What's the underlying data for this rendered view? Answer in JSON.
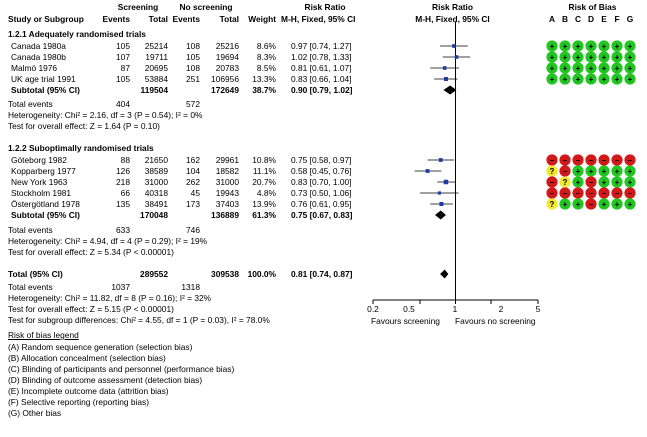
{
  "header": {
    "screening": "Screening",
    "no_screening": "No screening",
    "risk_ratio_top": "Risk Ratio",
    "risk_ratio_plot_top": "Risk Ratio",
    "risk_of_bias": "Risk of Bias",
    "study_or_subgroup": "Study or Subgroup",
    "events_a": "Events",
    "total_a": "Total",
    "events_b": "Events",
    "total_b": "Total",
    "weight": "Weight",
    "method": "M-H, Fixed, 95% CI",
    "method_plot": "M-H, Fixed, 95% CI",
    "bias_letters": [
      "A",
      "B",
      "C",
      "D",
      "E",
      "F",
      "G"
    ]
  },
  "subgroup1": {
    "title": "1.2.1 Adequately randomised trials",
    "studies": [
      {
        "name": "Canada 1980a",
        "e1": "105",
        "t1": "25214",
        "e2": "108",
        "t2": "25216",
        "weight": "8.6%",
        "ci": "0.97 [0.74, 1.27]",
        "rr": 0.97,
        "lo": 0.74,
        "hi": 1.27,
        "w": 8.6
      },
      {
        "name": "Canada 1980b",
        "e1": "107",
        "t1": "19711",
        "e2": "105",
        "t2": "19694",
        "weight": "8.3%",
        "ci": "1.02 [0.78, 1.33]",
        "rr": 1.02,
        "lo": 0.78,
        "hi": 1.33,
        "w": 8.3
      },
      {
        "name": "Malmö 1976",
        "e1": "87",
        "t1": "20695",
        "e2": "108",
        "t2": "20783",
        "weight": "8.5%",
        "ci": "0.81 [0.61, 1.07]",
        "rr": 0.81,
        "lo": 0.61,
        "hi": 1.07,
        "w": 8.5
      },
      {
        "name": "UK age trial 1991",
        "e1": "105",
        "t1": "53884",
        "e2": "251",
        "t2": "106956",
        "weight": "13.3%",
        "ci": "0.83 [0.66, 1.04]",
        "rr": 0.83,
        "lo": 0.66,
        "hi": 1.04,
        "w": 13.3
      }
    ],
    "subtotal": {
      "label": "Subtotal (95% CI)",
      "t1": "119504",
      "t2": "172649",
      "weight": "38.7%",
      "ci": "0.90 [0.79, 1.02]",
      "rr": 0.9,
      "lo": 0.79,
      "hi": 1.02
    },
    "total_events": {
      "label": "Total events",
      "e1": "404",
      "e2": "572"
    },
    "heterogeneity": "Heterogeneity: Chi² = 2.16, df = 3 (P = 0.54); I² = 0%",
    "overall": "Test for overall effect: Z = 1.64 (P = 0.10)",
    "bias": [
      [
        "+",
        "+",
        "+",
        "+",
        "+",
        "+",
        "+"
      ],
      [
        "+",
        "+",
        "+",
        "+",
        "+",
        "+",
        "+"
      ],
      [
        "+",
        "+",
        "+",
        "+",
        "+",
        "+",
        "+"
      ],
      [
        "+",
        "+",
        "+",
        "+",
        "+",
        "+",
        "+"
      ]
    ]
  },
  "subgroup2": {
    "title": "1.2.2 Suboptimally randomised trials",
    "studies": [
      {
        "name": "Göteborg 1982",
        "e1": "88",
        "t1": "21650",
        "e2": "162",
        "t2": "29961",
        "weight": "10.8%",
        "ci": "0.75 [0.58, 0.97]",
        "rr": 0.75,
        "lo": 0.58,
        "hi": 0.97,
        "w": 10.8
      },
      {
        "name": "Kopparberg 1977",
        "e1": "126",
        "t1": "38589",
        "e2": "104",
        "t2": "18582",
        "weight": "11.1%",
        "ci": "0.58 [0.45, 0.76]",
        "rr": 0.58,
        "lo": 0.45,
        "hi": 0.76,
        "w": 11.1
      },
      {
        "name": "New York 1963",
        "e1": "218",
        "t1": "31000",
        "e2": "262",
        "t2": "31000",
        "weight": "20.7%",
        "ci": "0.83 [0.70, 1.00]",
        "rr": 0.83,
        "lo": 0.7,
        "hi": 1.0,
        "w": 20.7
      },
      {
        "name": "Stockholm 1981",
        "e1": "66",
        "t1": "40318",
        "e2": "45",
        "t2": "19943",
        "weight": "4.8%",
        "ci": "0.73 [0.50, 1.06]",
        "rr": 0.73,
        "lo": 0.5,
        "hi": 1.06,
        "w": 4.8
      },
      {
        "name": "Östergötland 1978",
        "e1": "135",
        "t1": "38491",
        "e2": "173",
        "t2": "37403",
        "weight": "13.9%",
        "ci": "0.76 [0.61, 0.95]",
        "rr": 0.76,
        "lo": 0.61,
        "hi": 0.95,
        "w": 13.9
      }
    ],
    "subtotal": {
      "label": "Subtotal (95% CI)",
      "t1": "170048",
      "t2": "136889",
      "weight": "61.3%",
      "ci": "0.75 [0.67, 0.83]",
      "rr": 0.75,
      "lo": 0.67,
      "hi": 0.83
    },
    "total_events": {
      "label": "Total events",
      "e1": "633",
      "e2": "746"
    },
    "heterogeneity": "Heterogeneity: Chi² = 4.94, df = 4 (P = 0.29); I² = 19%",
    "overall": "Test for overall effect: Z = 5.34 (P < 0.00001)",
    "bias": [
      [
        "-",
        "-",
        "-",
        "-",
        "-",
        "-",
        "-"
      ],
      [
        "?",
        "-",
        "+",
        "+",
        "+",
        "+",
        "+"
      ],
      [
        "-",
        "?",
        "+",
        "-",
        "+",
        "+",
        "+"
      ],
      [
        "-",
        "-",
        "-",
        "-",
        "-",
        "-",
        "-"
      ],
      [
        "?",
        "+",
        "+",
        "-",
        "+",
        "+",
        "+"
      ]
    ]
  },
  "total": {
    "label": "Total (95% CI)",
    "t1": "289552",
    "t2": "309538",
    "weight": "100.0%",
    "ci": "0.81 [0.74, 0.87]",
    "rr": 0.81,
    "lo": 0.74,
    "hi": 0.87,
    "events_label": "Total events",
    "e1": "1037",
    "e2": "1318",
    "heterogeneity": "Heterogeneity: Chi² = 11.82, df = 8 (P = 0.16); I² = 32%",
    "overall": "Test for overall effect: Z = 5.15 (P < 0.00001)",
    "subgroup_diff": "Test for subgroup differences: Chi² = 4.55, df = 1 (P = 0.03), I² = 78.0%"
  },
  "axis": {
    "ticks": [
      "0.2",
      "0.5",
      "1",
      "2",
      "5"
    ],
    "tick_values": [
      0.2,
      0.5,
      1,
      2,
      5
    ],
    "left_label": "Favours screening",
    "right_label": "Favours no screening",
    "scale": "log",
    "xlim": [
      0.2,
      5
    ]
  },
  "legend": {
    "title": "Risk of bias legend",
    "items": [
      "(A) Random sequence generation (selection bias)",
      "(B) Allocation concealment (selection bias)",
      "(C) Blinding of participants and personnel (performance bias)",
      "(D) Blinding of outcome assessment (detection bias)",
      "(E) Incomplete outcome data (attrition bias)",
      "(F) Selective reporting (reporting bias)",
      "(G) Other bias"
    ]
  },
  "colors": {
    "marker": "#1f3ba6",
    "low_risk": "#22c522",
    "high_risk": "#d21919",
    "unclear_risk": "#f2ea2c"
  },
  "chart_data": {
    "type": "forest",
    "scale": "log",
    "xlim": [
      0.2,
      5
    ],
    "xticks": [
      0.2,
      0.5,
      1,
      2,
      5
    ],
    "left_label": "Favours screening",
    "right_label": "Favours no screening",
    "studies": [
      {
        "name": "Canada 1980a",
        "rr": 0.97,
        "lo": 0.74,
        "hi": 1.27
      },
      {
        "name": "Canada 1980b",
        "rr": 1.02,
        "lo": 0.78,
        "hi": 1.33
      },
      {
        "name": "Malmö 1976",
        "rr": 0.81,
        "lo": 0.61,
        "hi": 1.07
      },
      {
        "name": "UK age trial 1991",
        "rr": 0.83,
        "lo": 0.66,
        "hi": 1.04
      },
      {
        "name": "Göteborg 1982",
        "rr": 0.75,
        "lo": 0.58,
        "hi": 0.97
      },
      {
        "name": "Kopparberg 1977",
        "rr": 0.58,
        "lo": 0.45,
        "hi": 0.76
      },
      {
        "name": "New York 1963",
        "rr": 0.83,
        "lo": 0.7,
        "hi": 1.0
      },
      {
        "name": "Stockholm 1981",
        "rr": 0.73,
        "lo": 0.5,
        "hi": 1.06
      },
      {
        "name": "Östergötland 1978",
        "rr": 0.76,
        "lo": 0.61,
        "hi": 0.95
      }
    ],
    "pooled": [
      {
        "name": "Subtotal (95% CI)",
        "rr": 0.9,
        "lo": 0.79,
        "hi": 1.02
      },
      {
        "name": "Subtotal (95% CI)",
        "rr": 0.75,
        "lo": 0.67,
        "hi": 0.83
      },
      {
        "name": "Total (95% CI)",
        "rr": 0.81,
        "lo": 0.74,
        "hi": 0.87
      }
    ]
  }
}
